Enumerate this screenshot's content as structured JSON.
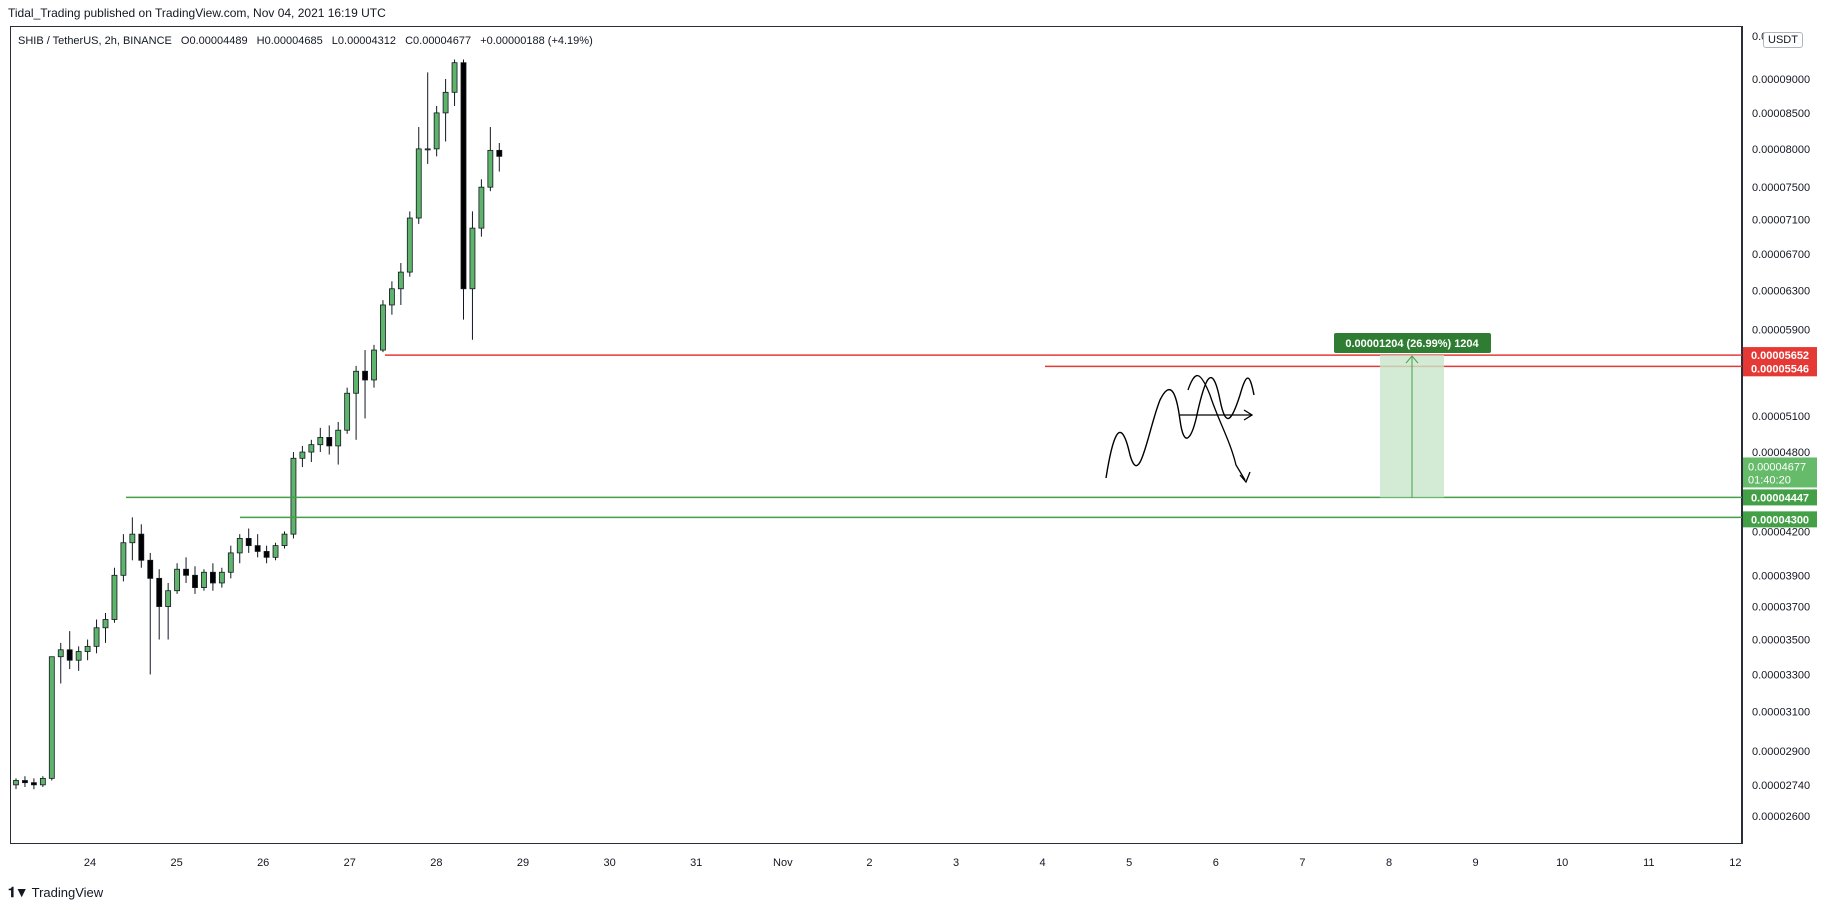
{
  "header": {
    "publisher_line": "Tidal_Trading published on TradingView.com, Nov 04, 2021 16:19 UTC"
  },
  "legend": {
    "symbol": "SHIB / TetherUS, 2h, BINANCE",
    "open": "O0.00004489",
    "high": "H0.00004685",
    "low": "L0.00004312",
    "close": "C0.00004677",
    "change": "+0.00000188 (+4.19%)"
  },
  "currency_badge": "USDT",
  "clipped_top_label": "0.0",
  "footer": {
    "brand": "TradingView",
    "logo_icon": "tradingview-logo-icon"
  },
  "colors": {
    "up": "#26a69a",
    "up_fill": "#5fb46b",
    "down": "#000000",
    "resistance": "#e53935",
    "support": "#43a047",
    "target_fill": "#c8e6c9"
  },
  "chart_data": {
    "type": "candlestick",
    "title": "SHIB / TetherUS, 2h, BINANCE",
    "xlabel": "",
    "ylabel": "",
    "x_ticks": [
      "24",
      "25",
      "26",
      "27",
      "28",
      "29",
      "30",
      "31",
      "Nov",
      "2",
      "3",
      "4",
      "5",
      "6",
      "7",
      "8",
      "9",
      "10",
      "11",
      "12"
    ],
    "y_ticks": [
      "0.00009000",
      "0.00008500",
      "0.00008000",
      "0.00007500",
      "0.00007100",
      "0.00006700",
      "0.00006300",
      "0.00005900",
      "0.00005100",
      "0.00004800",
      "0.00004200",
      "0.00003900",
      "0.00003700",
      "0.00003500",
      "0.00003300",
      "0.00003100",
      "0.00002900",
      "0.00002740",
      "0.00002600"
    ],
    "ylim": [
      2.48e-05,
      9.84e-05
    ],
    "y_scale": "log",
    "grid": false,
    "series": [
      {
        "values": [
          [
            2.74e-05,
            2.77e-05,
            2.72e-05,
            2.76e-05
          ],
          [
            2.76e-05,
            2.78e-05,
            2.73e-05,
            2.75e-05
          ],
          [
            2.75e-05,
            2.77e-05,
            2.72e-05,
            2.74e-05
          ],
          [
            2.74e-05,
            2.78e-05,
            2.73e-05,
            2.77e-05
          ],
          [
            2.77e-05,
            3.1e-05,
            2.76e-05,
            3.4e-05
          ],
          [
            3.4e-05,
            3.48e-05,
            3.25e-05,
            3.44e-05
          ],
          [
            3.44e-05,
            3.55e-05,
            3.33e-05,
            3.38e-05
          ],
          [
            3.38e-05,
            3.46e-05,
            3.32e-05,
            3.43e-05
          ],
          [
            3.43e-05,
            3.5e-05,
            3.38e-05,
            3.46e-05
          ],
          [
            3.46e-05,
            3.62e-05,
            3.42e-05,
            3.57e-05
          ],
          [
            3.57e-05,
            3.66e-05,
            3.48e-05,
            3.62e-05
          ],
          [
            3.62e-05,
            3.95e-05,
            3.6e-05,
            3.9e-05
          ],
          [
            3.9e-05,
            4.18e-05,
            3.86e-05,
            4.12e-05
          ],
          [
            4.12e-05,
            4.3e-05,
            4e-05,
            4.18e-05
          ],
          [
            4.18e-05,
            4.25e-05,
            3.95e-05,
            4e-05
          ],
          [
            4e-05,
            4.05e-05,
            3.3e-05,
            3.88e-05
          ],
          [
            3.88e-05,
            3.94e-05,
            3.5e-05,
            3.7e-05
          ],
          [
            3.7e-05,
            3.85e-05,
            3.5e-05,
            3.8e-05
          ],
          [
            3.8e-05,
            3.98e-05,
            3.78e-05,
            3.94e-05
          ],
          [
            3.94e-05,
            4.02e-05,
            3.85e-05,
            3.9e-05
          ],
          [
            3.9e-05,
            3.96e-05,
            3.78e-05,
            3.82e-05
          ],
          [
            3.82e-05,
            3.94e-05,
            3.8e-05,
            3.92e-05
          ],
          [
            3.92e-05,
            3.98e-05,
            3.8e-05,
            3.85e-05
          ],
          [
            3.85e-05,
            3.95e-05,
            3.82e-05,
            3.92e-05
          ],
          [
            3.92e-05,
            4.1e-05,
            3.88e-05,
            4.05e-05
          ],
          [
            4.05e-05,
            4.18e-05,
            3.98e-05,
            4.15e-05
          ],
          [
            4.15e-05,
            4.22e-05,
            4.05e-05,
            4.1e-05
          ],
          [
            4.1e-05,
            4.18e-05,
            4.02e-05,
            4.06e-05
          ],
          [
            4.06e-05,
            4.1e-05,
            3.98e-05,
            4.02e-05
          ],
          [
            4.02e-05,
            4.12e-05,
            4e-05,
            4.1e-05
          ],
          [
            4.1e-05,
            4.2e-05,
            4.08e-05,
            4.18e-05
          ],
          [
            4.18e-05,
            4.8e-05,
            4.15e-05,
            4.75e-05
          ],
          [
            4.75e-05,
            4.85e-05,
            4.68e-05,
            4.8e-05
          ],
          [
            4.8e-05,
            4.9e-05,
            4.72e-05,
            4.86e-05
          ],
          [
            4.86e-05,
            5e-05,
            4.8e-05,
            4.92e-05
          ],
          [
            4.92e-05,
            5.02e-05,
            4.78e-05,
            4.85e-05
          ],
          [
            4.85e-05,
            5.05e-05,
            4.7e-05,
            4.98e-05
          ],
          [
            4.98e-05,
            5.35e-05,
            4.95e-05,
            5.3e-05
          ],
          [
            5.3e-05,
            5.55e-05,
            4.9e-05,
            5.5e-05
          ],
          [
            5.5e-05,
            5.7e-05,
            5.08e-05,
            5.42e-05
          ],
          [
            5.42e-05,
            5.75e-05,
            5.35e-05,
            5.7e-05
          ],
          [
            5.7e-05,
            6.2e-05,
            5.68e-05,
            6.15e-05
          ],
          [
            6.15e-05,
            6.4e-05,
            6.05e-05,
            6.32e-05
          ],
          [
            6.32e-05,
            6.6e-05,
            6.15e-05,
            6.5e-05
          ],
          [
            6.5e-05,
            7.2e-05,
            6.45e-05,
            7.12e-05
          ],
          [
            7.12e-05,
            8.3e-05,
            7.05e-05,
            8e-05
          ],
          [
            8e-05,
            9.1e-05,
            7.8e-05,
            8e-05
          ],
          [
            8e-05,
            8.6e-05,
            7.9e-05,
            8.5e-05
          ],
          [
            8.5e-05,
            9e-05,
            8.1e-05,
            8.8e-05
          ],
          [
            8.8e-05,
            9.3e-05,
            8.6e-05,
            9.25e-05
          ],
          [
            9.25e-05,
            9.3e-05,
            6e-05,
            6.32e-05
          ],
          [
            6.32e-05,
            7.2e-05,
            5.8e-05,
            7e-05
          ],
          [
            7e-05,
            7.6e-05,
            6.9e-05,
            7.5e-05
          ],
          [
            7.5e-05,
            8.3e-05,
            7.45e-05,
            7.98e-05
          ],
          [
            7.98e-05,
            8.08e-05,
            7.7e-05,
            7.9e-05
          ]
        ]
      }
    ],
    "candle_count_note_hidden": "",
    "annotations": {
      "resistance_top": "0.00005652",
      "resistance_bottom": "0.00005546",
      "support_top": "0.00004447",
      "support_bottom": "0.00004300",
      "last_price": "0.00004677",
      "countdown": "01:40:20",
      "measure_label": "0.00001204 (26.99%) 1204"
    }
  }
}
